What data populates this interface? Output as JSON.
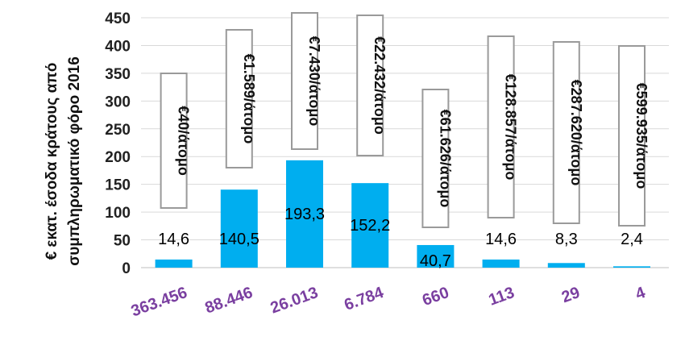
{
  "chart_data": {
    "type": "bar",
    "ylabel_lines": [
      "€ εκατ. έσοδα κράτους από",
      "συμπληρωματικό φόρο 2016"
    ],
    "ylim": [
      0,
      450
    ],
    "yticks": [
      "0",
      "50",
      "100",
      "150",
      "200",
      "250",
      "300",
      "350",
      "400",
      "450"
    ],
    "grid": true,
    "categories": [
      "363.456",
      "88.446",
      "26.013",
      "6.784",
      "660",
      "113",
      "29",
      "4"
    ],
    "values": [
      14.6,
      140.5,
      193.3,
      152.2,
      40.7,
      14.6,
      8.3,
      2.4
    ],
    "value_labels": [
      "14,6",
      "140,5",
      "193,3",
      "152,2",
      "40,7",
      "14,6",
      "8,3",
      "2,4"
    ],
    "annotations": [
      "€40/άτομο",
      "€1.589/άτομο",
      "€7.430/άτομο",
      "€22.432/άτομο",
      "€61.626/άτομο",
      "€128.857/άτομο",
      "€287.620/άτομο",
      "€599.935/άτομο"
    ],
    "colors": {
      "bar": "#00aeef",
      "category_label": "#7a3fa0",
      "annotation_border": "#9a9a9a"
    }
  }
}
